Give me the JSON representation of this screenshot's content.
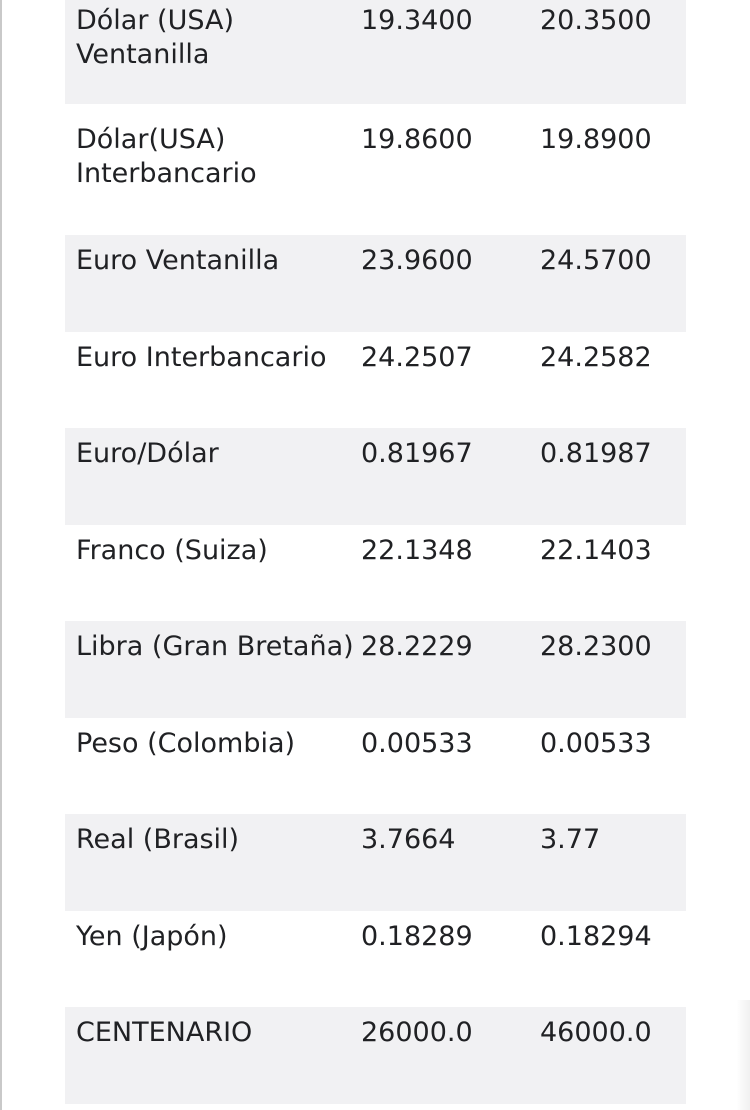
{
  "rates": [
    {
      "name": "Dólar (USA) Ventanilla",
      "buy": "19.3400",
      "sell": "20.3500"
    },
    {
      "name": "Dólar(USA) Interbancario",
      "buy": "19.8600",
      "sell": "19.8900"
    },
    {
      "name": "Euro Ventanilla",
      "buy": "23.9600",
      "sell": "24.5700"
    },
    {
      "name": "Euro Interbancario",
      "buy": "24.2507",
      "sell": "24.2582"
    },
    {
      "name": "Euro/Dólar",
      "buy": "0.81967",
      "sell": "0.81987"
    },
    {
      "name": "Franco (Suiza)",
      "buy": "22.1348",
      "sell": "22.1403"
    },
    {
      "name": "Libra (Gran Bretaña)",
      "buy": "28.2229",
      "sell": "28.2300"
    },
    {
      "name": "Peso (Colombia)",
      "buy": "0.00533",
      "sell": "0.00533"
    },
    {
      "name": "Real (Brasil)",
      "buy": "3.7664",
      "sell": "3.77"
    },
    {
      "name": "Yen (Japón)",
      "buy": "0.18289",
      "sell": "0.18294"
    },
    {
      "name": "CENTENARIO",
      "buy": "26000.0",
      "sell": "46000.0"
    }
  ],
  "colors": {
    "row_shaded": "#f1f1f3",
    "row_plain": "#ffffff",
    "text": "#202124"
  }
}
